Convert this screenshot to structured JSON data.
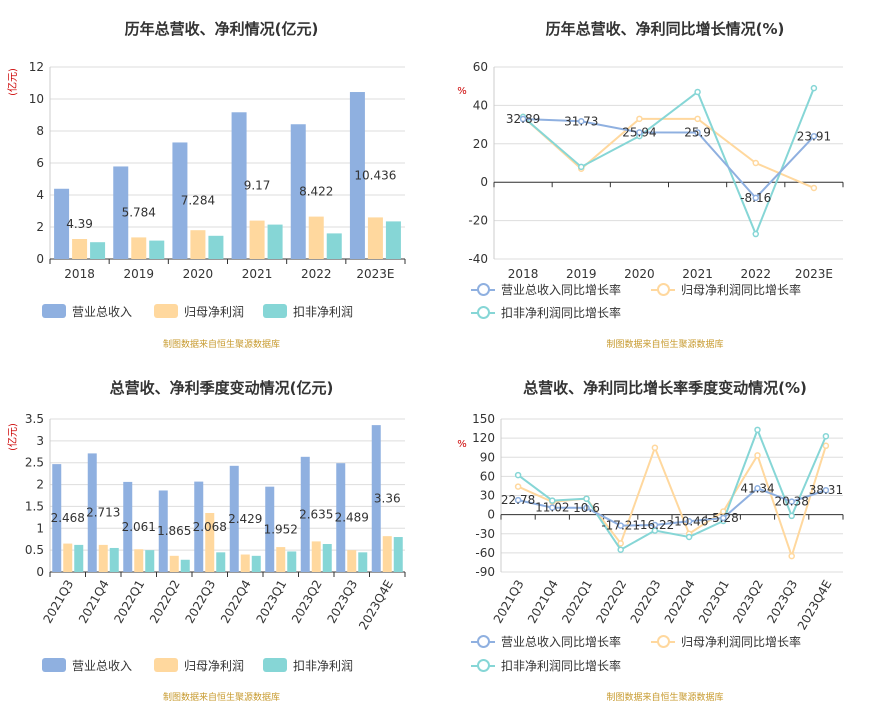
{
  "colors": {
    "revenue": "#8fb0e0",
    "netProfit": "#ffd89e",
    "deductedProfit": "#86d6d6",
    "title": "#333333",
    "unit": "#cc0000",
    "source": "#c79a2e",
    "grid": "#dddddd",
    "axis": "#333333"
  },
  "legend": {
    "bars": [
      "营业总收入",
      "归母净利润",
      "扣非净利润"
    ],
    "lines": [
      "营业总收入同比增长率",
      "归母净利润同比增长率",
      "扣非净利润同比增长率"
    ]
  },
  "source_note": "制图数据来自恒生聚源数据库",
  "chart_data": [
    {
      "id": "annual-amounts",
      "type": "bar",
      "title": "历年总营收、净利情况(亿元)",
      "ylabel": "亿元",
      "ylim": [
        0,
        12
      ],
      "yticks": [
        0,
        2,
        4,
        6,
        8,
        10,
        12
      ],
      "categories": [
        "2018",
        "2019",
        "2020",
        "2021",
        "2022",
        "2023E"
      ],
      "series": [
        {
          "name": "营业总收入",
          "values": [
            4.39,
            5.784,
            7.284,
            9.17,
            8.422,
            10.436
          ],
          "labels": [
            "4.39",
            "5.784",
            "7.284",
            "9.17",
            "8.422",
            "10.436"
          ]
        },
        {
          "name": "归母净利润",
          "values": [
            1.25,
            1.35,
            1.8,
            2.4,
            2.65,
            2.6
          ]
        },
        {
          "name": "扣非净利润",
          "values": [
            1.05,
            1.15,
            1.45,
            2.15,
            1.6,
            2.35
          ]
        }
      ],
      "grid": true,
      "legend_position": "bottom"
    },
    {
      "id": "annual-growth",
      "type": "line",
      "title": "历年总营收、净利同比增长情况(%)",
      "ylabel": "%",
      "ylim": [
        -40,
        60
      ],
      "yticks": [
        -40,
        -20,
        0,
        20,
        40,
        60
      ],
      "categories": [
        "2018",
        "2019",
        "2020",
        "2021",
        "2022",
        "2023E"
      ],
      "series": [
        {
          "name": "营业总收入同比增长率",
          "values": [
            32.89,
            31.73,
            25.94,
            25.9,
            -8.16,
            23.91
          ],
          "labels": [
            "32.89",
            "31.73",
            "25.94",
            "25.9",
            "-8.16",
            "23.91"
          ]
        },
        {
          "name": "归母净利润同比增长率",
          "values": [
            34,
            7,
            33,
            33,
            10,
            -3
          ]
        },
        {
          "name": "扣非净利润同比增长率",
          "values": [
            34,
            8,
            24,
            47,
            -27,
            49
          ]
        }
      ],
      "grid": true,
      "legend_position": "bottom"
    },
    {
      "id": "quarterly-amounts",
      "type": "bar",
      "title": "总营收、净利季度变动情况(亿元)",
      "ylabel": "亿元",
      "ylim": [
        0,
        3.5
      ],
      "yticks": [
        0,
        0.5,
        1,
        1.5,
        2,
        2.5,
        3,
        3.5
      ],
      "categories": [
        "2021Q3",
        "2021Q4",
        "2022Q1",
        "2022Q2",
        "2022Q3",
        "2022Q4",
        "2023Q1",
        "2023Q2",
        "2023Q3",
        "2023Q4E"
      ],
      "series": [
        {
          "name": "营业总收入",
          "values": [
            2.468,
            2.713,
            2.061,
            1.865,
            2.068,
            2.429,
            1.952,
            2.635,
            2.489,
            3.36
          ],
          "labels": [
            "2.468",
            "2.713",
            "2.061",
            "1.865",
            "2.068",
            "2.429",
            "1.952",
            "2.635",
            "2.489",
            "3.36"
          ]
        },
        {
          "name": "归母净利润",
          "values": [
            0.65,
            0.62,
            0.52,
            0.37,
            1.35,
            0.4,
            0.57,
            0.7,
            0.5,
            0.82
          ]
        },
        {
          "name": "扣非净利润",
          "values": [
            0.62,
            0.55,
            0.5,
            0.28,
            0.45,
            0.37,
            0.47,
            0.64,
            0.45,
            0.8
          ]
        }
      ],
      "grid": true,
      "legend_position": "bottom"
    },
    {
      "id": "quarterly-growth",
      "type": "line",
      "title": "总营收、净利同比增长率季度变动情况(%)",
      "ylabel": "%",
      "ylim": [
        -90,
        150
      ],
      "yticks": [
        -90,
        -60,
        -30,
        0,
        30,
        60,
        90,
        120,
        150
      ],
      "categories": [
        "2021Q3",
        "2021Q4",
        "2022Q1",
        "2022Q2",
        "2022Q3",
        "2022Q4",
        "2023Q1",
        "2023Q2",
        "2023Q3",
        "2023Q4E"
      ],
      "series": [
        {
          "name": "营业总收入同比增长率",
          "values": [
            22.78,
            11.02,
            10.6,
            -17.21,
            -16.22,
            -10.46,
            -5.28,
            41.34,
            20.38,
            38.31
          ],
          "labels": [
            "22.78",
            "11.02",
            "10.6",
            "-17.21",
            "-16.22",
            "-10.46",
            "-5.28",
            "41.34",
            "20.38",
            "38.31"
          ]
        },
        {
          "name": "归母净利润同比增长率",
          "values": [
            44,
            20,
            25,
            -45,
            105,
            -30,
            5,
            93,
            -65,
            108
          ]
        },
        {
          "name": "扣非净利润同比增长率",
          "values": [
            62,
            22,
            25,
            -55,
            -25,
            -35,
            -10,
            133,
            -2,
            123
          ]
        }
      ],
      "grid": true,
      "legend_position": "bottom"
    }
  ]
}
